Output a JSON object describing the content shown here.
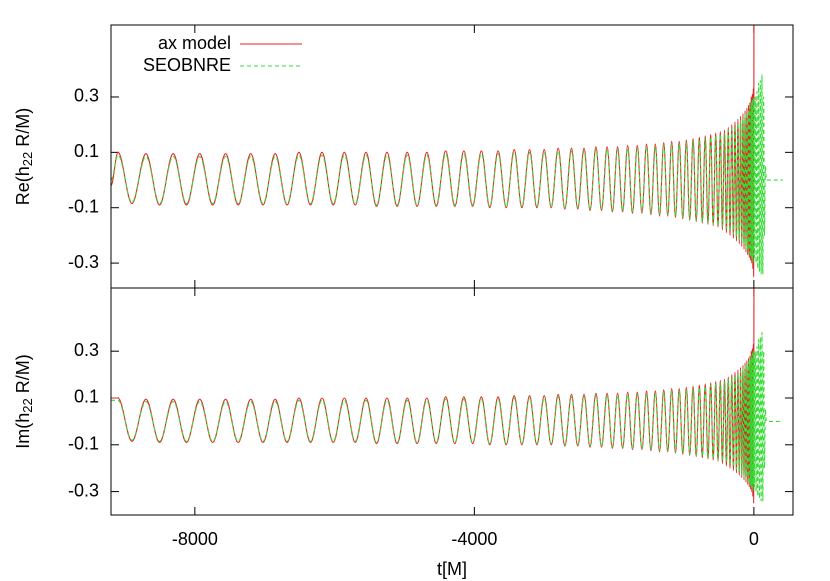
{
  "chart_data": [
    {
      "type": "line",
      "ylabel": "Re(h22 R/M)",
      "legend": "top left",
      "xlim": [
        -9200,
        560
      ],
      "xticks": [
        -8000,
        -4000,
        0
      ],
      "ylim": [
        -0.39,
        0.56
      ],
      "yticks": [
        -0.3,
        -0.1,
        0.1,
        0.3
      ],
      "x": [
        -9200,
        -9100,
        -8900,
        -8700,
        -8505,
        -8310,
        -8120,
        -7930,
        -7745,
        -7560,
        -7380,
        -7200,
        -7025,
        -6850,
        -6680,
        -6510,
        -6345,
        -6180,
        -6020,
        -5860,
        -5705,
        -5550,
        -5400,
        -5250,
        -5105,
        -4960,
        -4820,
        -4680,
        -4545,
        -4410,
        -4280,
        -4150,
        -4025,
        -3900,
        -3780,
        -3660,
        -3545,
        -3430,
        -3320,
        -3210,
        -3105,
        -3000,
        -2900,
        -2800,
        -2705,
        -2610,
        -2520,
        -2430,
        -2345,
        -2260,
        -2180,
        -2100,
        -2025,
        -1950,
        -1878,
        -1806,
        -1737,
        -1668,
        -1602,
        -1536,
        -1473,
        -1410,
        -1350,
        -1290,
        -1233,
        -1176,
        -1122,
        -1068,
        -1017,
        -966,
        -918,
        -870,
        -825,
        -780,
        -738,
        -696,
        -657,
        -618,
        -582,
        -546,
        -513,
        -480,
        -450,
        -420,
        -393,
        -366,
        -341,
        -316,
        -293,
        -270,
        -249,
        -228,
        -209,
        -190,
        -173,
        -156,
        -141,
        -126,
        -113,
        -100,
        -88,
        -76,
        -66,
        -56,
        -47,
        -38,
        -30,
        -22,
        -15,
        -8,
        -3,
        2,
        8,
        20,
        32,
        44,
        56,
        68,
        80,
        92,
        104,
        116,
        128,
        140,
        152,
        164,
        180,
        415
      ],
      "series": [
        {
          "name": "ax model",
          "color": "#e3262a",
          "dashed": false,
          "values": [
            -0.02,
            0.1,
            -0.085,
            0.095,
            -0.09,
            0.095,
            -0.09,
            0.095,
            -0.09,
            0.095,
            -0.09,
            0.095,
            -0.09,
            0.095,
            -0.09,
            0.1,
            -0.09,
            0.1,
            -0.09,
            0.1,
            -0.09,
            0.1,
            -0.095,
            0.1,
            -0.095,
            0.1,
            -0.095,
            0.1,
            -0.095,
            0.105,
            -0.095,
            0.105,
            -0.095,
            0.105,
            -0.1,
            0.105,
            -0.1,
            0.11,
            -0.1,
            0.11,
            -0.1,
            0.11,
            -0.1,
            0.115,
            -0.105,
            0.115,
            -0.105,
            0.115,
            -0.11,
            0.12,
            -0.11,
            0.12,
            -0.115,
            0.12,
            -0.115,
            0.125,
            -0.12,
            0.125,
            -0.12,
            0.13,
            -0.125,
            0.13,
            -0.13,
            0.135,
            -0.13,
            0.14,
            -0.135,
            0.14,
            -0.14,
            0.145,
            -0.145,
            0.15,
            -0.15,
            0.155,
            -0.155,
            0.16,
            -0.16,
            0.165,
            -0.165,
            0.17,
            -0.17,
            0.175,
            -0.18,
            0.18,
            -0.19,
            0.19,
            -0.2,
            0.2,
            -0.21,
            0.21,
            -0.22,
            0.22,
            -0.23,
            0.23,
            -0.24,
            0.24,
            -0.25,
            0.25,
            -0.26,
            0.26,
            -0.27,
            0.27,
            -0.28,
            0.28,
            -0.29,
            0.3,
            -0.3,
            0.31,
            -0.32,
            0.33,
            -0.35,
            0.6,
            null,
            null,
            null,
            null,
            null,
            null,
            null,
            null,
            null,
            null,
            null,
            null,
            null,
            null,
            null,
            null
          ]
        },
        {
          "name": "SEOBNRE",
          "color": "#33dd33",
          "dashed": true,
          "values": [
            0,
            0.09,
            -0.08,
            0.085,
            -0.085,
            0.085,
            -0.085,
            0.085,
            -0.085,
            0.085,
            -0.085,
            0.085,
            -0.085,
            0.085,
            -0.085,
            0.09,
            -0.085,
            0.09,
            -0.085,
            0.09,
            -0.085,
            0.09,
            -0.09,
            0.09,
            -0.09,
            0.09,
            -0.09,
            0.09,
            -0.09,
            0.095,
            -0.09,
            0.095,
            -0.09,
            0.095,
            -0.095,
            0.095,
            -0.095,
            0.1,
            -0.095,
            0.1,
            -0.095,
            0.1,
            -0.095,
            0.105,
            -0.1,
            0.105,
            -0.1,
            0.105,
            -0.105,
            0.11,
            -0.105,
            0.11,
            -0.11,
            0.11,
            -0.11,
            0.115,
            -0.115,
            0.115,
            -0.115,
            0.12,
            -0.12,
            0.12,
            -0.125,
            0.125,
            -0.125,
            0.13,
            -0.13,
            0.13,
            -0.135,
            0.135,
            -0.14,
            0.14,
            -0.145,
            0.145,
            -0.15,
            0.15,
            -0.155,
            0.155,
            -0.16,
            0.16,
            -0.165,
            0.165,
            -0.17,
            0.17,
            -0.175,
            0.18,
            -0.185,
            0.185,
            -0.195,
            0.195,
            -0.205,
            0.205,
            -0.215,
            0.215,
            -0.225,
            0.225,
            -0.235,
            0.235,
            -0.245,
            0.245,
            -0.255,
            0.255,
            -0.265,
            0.265,
            -0.275,
            0.28,
            -0.285,
            0.29,
            -0.3,
            0.3,
            -0.27,
            0.28,
            -0.28,
            0.3,
            -0.3,
            0.32,
            -0.32,
            0.35,
            -0.33,
            0.36,
            -0.34,
            0.38,
            -0.34,
            0.3,
            -0.2,
            0.05,
            0,
            0
          ]
        }
      ]
    },
    {
      "type": "line",
      "ylabel": "Im(h22 R/M)",
      "xlabel": "t[M]",
      "xlim": [
        -9200,
        560
      ],
      "xticks": [
        -8000,
        -4000,
        0
      ],
      "ylim": [
        -0.4,
        0.57
      ],
      "yticks": [
        -0.3,
        -0.1,
        0.1,
        0.3
      ],
      "x": [
        -9200,
        -9100,
        -8900,
        -8700,
        -8505,
        -8310,
        -8120,
        -7930,
        -7745,
        -7560,
        -7380,
        -7200,
        -7025,
        -6850,
        -6680,
        -6510,
        -6345,
        -6180,
        -6020,
        -5860,
        -5705,
        -5550,
        -5400,
        -5250,
        -5105,
        -4960,
        -4820,
        -4680,
        -4545,
        -4410,
        -4280,
        -4150,
        -4025,
        -3900,
        -3780,
        -3660,
        -3545,
        -3430,
        -3320,
        -3210,
        -3105,
        -3000,
        -2900,
        -2800,
        -2705,
        -2610,
        -2520,
        -2430,
        -2345,
        -2260,
        -2180,
        -2100,
        -2025,
        -1950,
        -1878,
        -1806,
        -1737,
        -1668,
        -1602,
        -1536,
        -1473,
        -1410,
        -1350,
        -1290,
        -1233,
        -1176,
        -1122,
        -1068,
        -1017,
        -966,
        -918,
        -870,
        -825,
        -780,
        -738,
        -696,
        -657,
        -618,
        -582,
        -546,
        -513,
        -480,
        -450,
        -420,
        -393,
        -366,
        -341,
        -316,
        -293,
        -270,
        -249,
        -228,
        -209,
        -190,
        -173,
        -156,
        -141,
        -126,
        -113,
        -100,
        -88,
        -76,
        -66,
        -56,
        -47,
        -38,
        -30,
        -22,
        -15,
        -8,
        -3,
        2,
        8,
        20,
        32,
        44,
        56,
        68,
        80,
        92,
        104,
        116,
        128,
        140,
        152,
        164,
        180,
        415
      ],
      "series": [
        {
          "color": "#e3262a",
          "dashed": false,
          "values": [
            0.1,
            0.1,
            -0.085,
            0.095,
            -0.09,
            0.095,
            -0.09,
            0.095,
            -0.09,
            0.095,
            -0.09,
            0.095,
            -0.09,
            0.095,
            -0.09,
            0.1,
            -0.09,
            0.1,
            -0.09,
            0.1,
            -0.09,
            0.1,
            -0.095,
            0.1,
            -0.095,
            0.1,
            -0.095,
            0.1,
            -0.095,
            0.105,
            -0.095,
            0.105,
            -0.095,
            0.105,
            -0.1,
            0.105,
            -0.1,
            0.11,
            -0.1,
            0.11,
            -0.1,
            0.11,
            -0.1,
            0.115,
            -0.105,
            0.115,
            -0.105,
            0.115,
            -0.11,
            0.12,
            -0.11,
            0.12,
            -0.115,
            0.12,
            -0.115,
            0.125,
            -0.12,
            0.125,
            -0.12,
            0.13,
            -0.125,
            0.13,
            -0.13,
            0.135,
            -0.13,
            0.14,
            -0.135,
            0.14,
            -0.14,
            0.145,
            -0.145,
            0.15,
            -0.15,
            0.155,
            -0.155,
            0.16,
            -0.16,
            0.165,
            -0.165,
            0.17,
            -0.17,
            0.175,
            -0.18,
            0.18,
            -0.19,
            0.19,
            -0.2,
            0.2,
            -0.21,
            0.21,
            -0.22,
            0.22,
            -0.23,
            0.23,
            -0.24,
            0.24,
            -0.25,
            0.25,
            -0.26,
            0.26,
            -0.27,
            0.27,
            -0.28,
            0.28,
            -0.29,
            0.3,
            -0.3,
            0.31,
            -0.32,
            0.33,
            -0.35,
            0.6,
            null,
            null,
            null,
            null,
            null,
            null,
            null,
            null,
            null,
            null,
            null,
            null,
            null,
            null,
            null,
            null
          ]
        },
        {
          "color": "#33dd33",
          "dashed": true,
          "values": [
            0.09,
            0.09,
            -0.08,
            0.085,
            -0.085,
            0.085,
            -0.085,
            0.085,
            -0.085,
            0.085,
            -0.085,
            0.085,
            -0.085,
            0.085,
            -0.085,
            0.09,
            -0.085,
            0.09,
            -0.085,
            0.09,
            -0.085,
            0.09,
            -0.09,
            0.09,
            -0.09,
            0.09,
            -0.09,
            0.09,
            -0.09,
            0.095,
            -0.09,
            0.095,
            -0.09,
            0.095,
            -0.095,
            0.095,
            -0.095,
            0.1,
            -0.095,
            0.1,
            -0.095,
            0.1,
            -0.095,
            0.105,
            -0.1,
            0.105,
            -0.1,
            0.105,
            -0.105,
            0.11,
            -0.105,
            0.11,
            -0.11,
            0.11,
            -0.11,
            0.115,
            -0.115,
            0.115,
            -0.115,
            0.12,
            -0.12,
            0.12,
            -0.125,
            0.125,
            -0.125,
            0.13,
            -0.13,
            0.13,
            -0.135,
            0.135,
            -0.14,
            0.14,
            -0.145,
            0.145,
            -0.15,
            0.15,
            -0.155,
            0.155,
            -0.16,
            0.16,
            -0.165,
            0.165,
            -0.17,
            0.17,
            -0.175,
            0.18,
            -0.185,
            0.185,
            -0.195,
            0.195,
            -0.205,
            0.205,
            -0.215,
            0.215,
            -0.225,
            0.225,
            -0.235,
            0.235,
            -0.245,
            0.245,
            -0.255,
            0.255,
            -0.265,
            0.265,
            -0.275,
            0.28,
            -0.285,
            0.29,
            -0.3,
            0.3,
            -0.27,
            0.28,
            -0.28,
            0.3,
            -0.3,
            0.32,
            -0.32,
            0.35,
            -0.33,
            0.36,
            -0.34,
            0.38,
            -0.34,
            0.3,
            -0.2,
            0.05,
            0,
            0
          ]
        }
      ]
    }
  ]
}
